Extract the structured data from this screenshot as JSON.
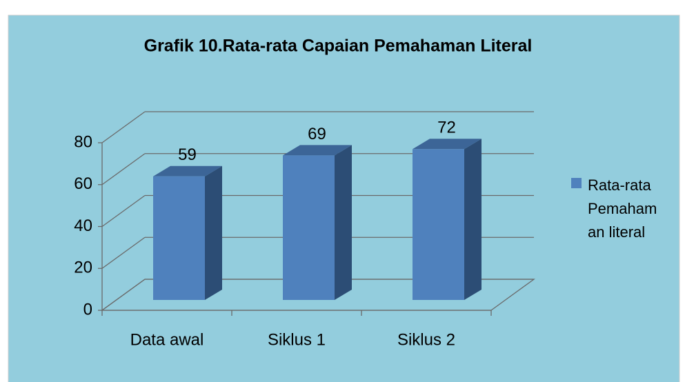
{
  "chart_data": {
    "type": "bar3d",
    "title": "Grafik 10.Rata-rata Capaian Pemahaman Literal",
    "categories": [
      "Data awal",
      "Siklus 1",
      "Siklus 2"
    ],
    "series": [
      {
        "name": "Rata-rata Pemahaman literal",
        "color": "#4f81bd",
        "values": [
          59,
          69,
          72
        ]
      }
    ],
    "ylim": [
      0,
      80
    ],
    "yticks": [
      0,
      20,
      40,
      60,
      80
    ],
    "grid": true,
    "legend": "right",
    "background": "#93cddd"
  }
}
